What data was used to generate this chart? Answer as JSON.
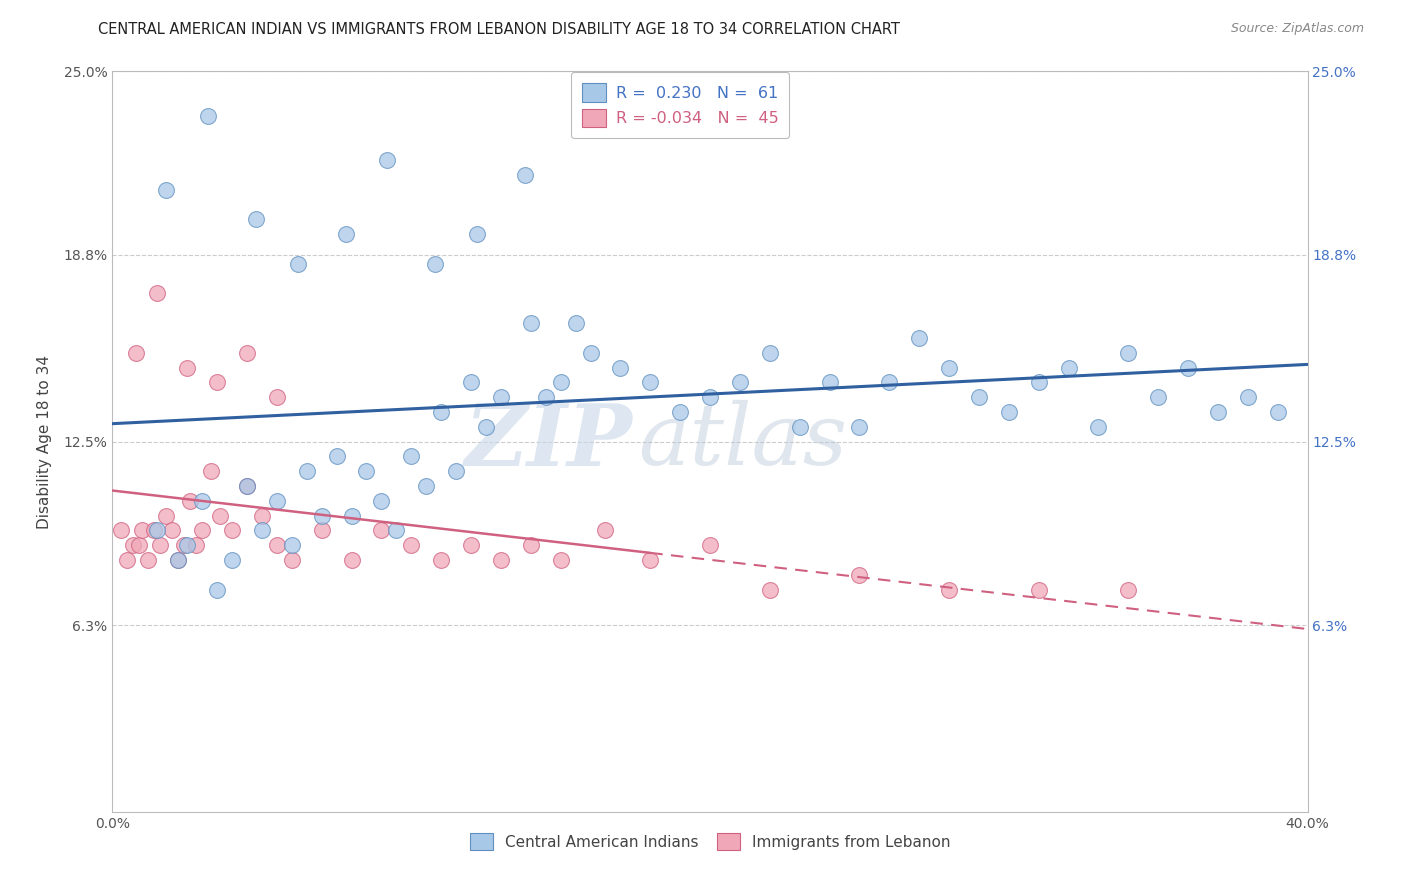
{
  "title": "CENTRAL AMERICAN INDIAN VS IMMIGRANTS FROM LEBANON DISABILITY AGE 18 TO 34 CORRELATION CHART",
  "source": "Source: ZipAtlas.com",
  "ylabel": "Disability Age 18 to 34",
  "xlim": [
    0.0,
    40.0
  ],
  "ylim": [
    0.0,
    25.0
  ],
  "yticks": [
    0.0,
    6.3,
    12.5,
    18.8,
    25.0
  ],
  "xticks": [
    0.0,
    40.0
  ],
  "ytick_labels": [
    "",
    "6.3%",
    "12.5%",
    "18.8%",
    "25.0%"
  ],
  "xtick_labels": [
    "0.0%",
    "40.0%"
  ],
  "watermark_zip": "ZIP",
  "watermark_atlas": "atlas",
  "legend1_r": "0.230",
  "legend1_n": "61",
  "legend2_r": "-0.034",
  "legend2_n": "45",
  "color_blue": "#A8C8E8",
  "color_pink": "#F0A8B8",
  "color_blue_edge": "#6090C0",
  "color_pink_edge": "#D06080",
  "color_line_blue": "#3060A0",
  "color_line_pink": "#D06080",
  "background_color": "#FFFFFF",
  "grid_color": "#CCCCCC",
  "title_fontsize": 10.5,
  "axis_label_fontsize": 11,
  "tick_fontsize": 10,
  "blue_x": [
    1.5,
    2.2,
    2.5,
    3.0,
    3.5,
    4.0,
    4.5,
    5.0,
    5.5,
    6.0,
    6.5,
    7.0,
    7.5,
    8.0,
    8.5,
    9.0,
    9.5,
    10.0,
    10.5,
    11.0,
    11.5,
    12.0,
    12.5,
    13.0,
    14.0,
    14.5,
    15.0,
    16.0,
    17.0,
    18.0,
    19.0,
    20.0,
    21.0,
    22.0,
    23.0,
    24.0,
    25.0,
    26.0,
    27.0,
    28.0,
    29.0,
    30.0,
    31.0,
    32.0,
    33.0,
    34.0,
    35.0,
    36.0,
    37.0,
    38.0,
    39.0,
    1.8,
    3.2,
    4.8,
    6.2,
    7.8,
    9.2,
    10.8,
    12.2,
    13.8,
    15.5
  ],
  "blue_y": [
    9.5,
    8.5,
    9.0,
    10.5,
    7.5,
    8.5,
    11.0,
    9.5,
    10.5,
    9.0,
    11.5,
    10.0,
    12.0,
    10.0,
    11.5,
    10.5,
    9.5,
    12.0,
    11.0,
    13.5,
    11.5,
    14.5,
    13.0,
    14.0,
    16.5,
    14.0,
    14.5,
    15.5,
    15.0,
    14.5,
    13.5,
    14.0,
    14.5,
    15.5,
    13.0,
    14.5,
    13.0,
    14.5,
    16.0,
    15.0,
    14.0,
    13.5,
    14.5,
    15.0,
    13.0,
    15.5,
    14.0,
    15.0,
    13.5,
    14.0,
    13.5,
    21.0,
    23.5,
    20.0,
    18.5,
    19.5,
    22.0,
    18.5,
    19.5,
    21.5,
    16.5
  ],
  "pink_x": [
    0.3,
    0.5,
    0.7,
    0.9,
    1.0,
    1.2,
    1.4,
    1.6,
    1.8,
    2.0,
    2.2,
    2.4,
    2.6,
    2.8,
    3.0,
    3.3,
    3.6,
    4.0,
    4.5,
    5.0,
    5.5,
    6.0,
    7.0,
    8.0,
    9.0,
    10.0,
    11.0,
    12.0,
    13.0,
    14.0,
    15.0,
    16.5,
    18.0,
    20.0,
    22.0,
    25.0,
    28.0,
    31.0,
    34.0,
    0.8,
    1.5,
    2.5,
    3.5,
    4.5,
    5.5
  ],
  "pink_y": [
    9.5,
    8.5,
    9.0,
    9.0,
    9.5,
    8.5,
    9.5,
    9.0,
    10.0,
    9.5,
    8.5,
    9.0,
    10.5,
    9.0,
    9.5,
    11.5,
    10.0,
    9.5,
    11.0,
    10.0,
    9.0,
    8.5,
    9.5,
    8.5,
    9.5,
    9.0,
    8.5,
    9.0,
    8.5,
    9.0,
    8.5,
    9.5,
    8.5,
    9.0,
    7.5,
    8.0,
    7.5,
    7.5,
    7.5,
    15.5,
    17.5,
    15.0,
    14.5,
    15.5,
    14.0
  ]
}
